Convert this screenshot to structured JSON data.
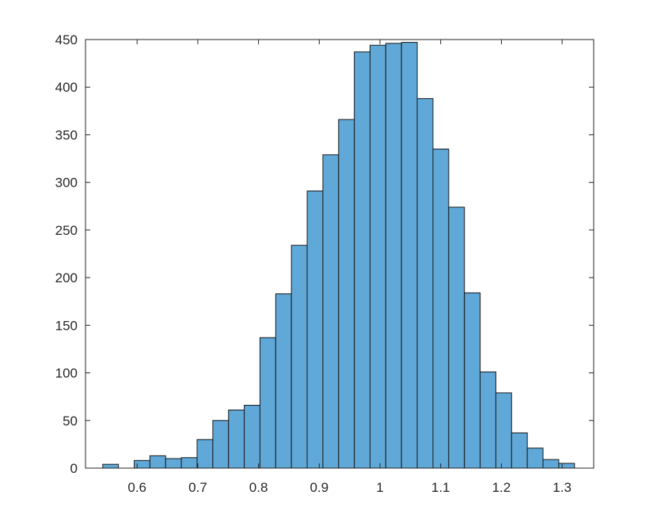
{
  "chart_data": {
    "type": "bar",
    "title": "",
    "xlabel": "",
    "ylabel": "",
    "bin_width": 0.0259,
    "bins": [
      {
        "x0": 0.5434,
        "x1": 0.5693,
        "count": 4
      },
      {
        "x0": 0.5693,
        "x1": 0.5952,
        "count": 0
      },
      {
        "x0": 0.5952,
        "x1": 0.6211,
        "count": 8
      },
      {
        "x0": 0.6211,
        "x1": 0.647,
        "count": 13
      },
      {
        "x0": 0.647,
        "x1": 0.6729,
        "count": 10
      },
      {
        "x0": 0.6729,
        "x1": 0.6988,
        "count": 11
      },
      {
        "x0": 0.6988,
        "x1": 0.7247,
        "count": 30
      },
      {
        "x0": 0.7247,
        "x1": 0.7506,
        "count": 50
      },
      {
        "x0": 0.7506,
        "x1": 0.7765,
        "count": 61
      },
      {
        "x0": 0.7765,
        "x1": 0.8024,
        "count": 66
      },
      {
        "x0": 0.8024,
        "x1": 0.8283,
        "count": 137
      },
      {
        "x0": 0.8283,
        "x1": 0.8542,
        "count": 183
      },
      {
        "x0": 0.8542,
        "x1": 0.8801,
        "count": 234
      },
      {
        "x0": 0.8801,
        "x1": 0.906,
        "count": 291
      },
      {
        "x0": 0.906,
        "x1": 0.9319,
        "count": 329
      },
      {
        "x0": 0.9319,
        "x1": 0.9578,
        "count": 366
      },
      {
        "x0": 0.9578,
        "x1": 0.9837,
        "count": 437
      },
      {
        "x0": 0.9837,
        "x1": 1.0096,
        "count": 444
      },
      {
        "x0": 1.0096,
        "x1": 1.0355,
        "count": 446
      },
      {
        "x0": 1.0355,
        "x1": 1.0614,
        "count": 447
      },
      {
        "x0": 1.0614,
        "x1": 1.0873,
        "count": 388
      },
      {
        "x0": 1.0873,
        "x1": 1.1132,
        "count": 335
      },
      {
        "x0": 1.1132,
        "x1": 1.1391,
        "count": 274
      },
      {
        "x0": 1.1391,
        "x1": 1.165,
        "count": 184
      },
      {
        "x0": 1.165,
        "x1": 1.1909,
        "count": 101
      },
      {
        "x0": 1.1909,
        "x1": 1.2168,
        "count": 79
      },
      {
        "x0": 1.2168,
        "x1": 1.2427,
        "count": 37
      },
      {
        "x0": 1.2427,
        "x1": 1.2686,
        "count": 21
      },
      {
        "x0": 1.2686,
        "x1": 1.2945,
        "count": 9
      },
      {
        "x0": 1.2945,
        "x1": 1.3204,
        "count": 5
      }
    ],
    "xlim": [
      0.515,
      1.352
    ],
    "ylim": [
      0,
      450
    ],
    "xticks": [
      0.6,
      0.7,
      0.8,
      0.9,
      1,
      1.1,
      1.2,
      1.3
    ],
    "xtick_labels": [
      "0.6",
      "0.7",
      "0.8",
      "0.9",
      "1",
      "1.1",
      "1.2",
      "1.3"
    ],
    "yticks": [
      0,
      50,
      100,
      150,
      200,
      250,
      300,
      350,
      400,
      450
    ],
    "ytick_labels": [
      "0",
      "50",
      "100",
      "150",
      "200",
      "250",
      "300",
      "350",
      "400",
      "450"
    ],
    "grid": false,
    "legend": "none",
    "colors": {
      "bar_fill": "#5fa8d8",
      "bar_edge": "#1a1a1a",
      "axis": "#262626"
    }
  }
}
